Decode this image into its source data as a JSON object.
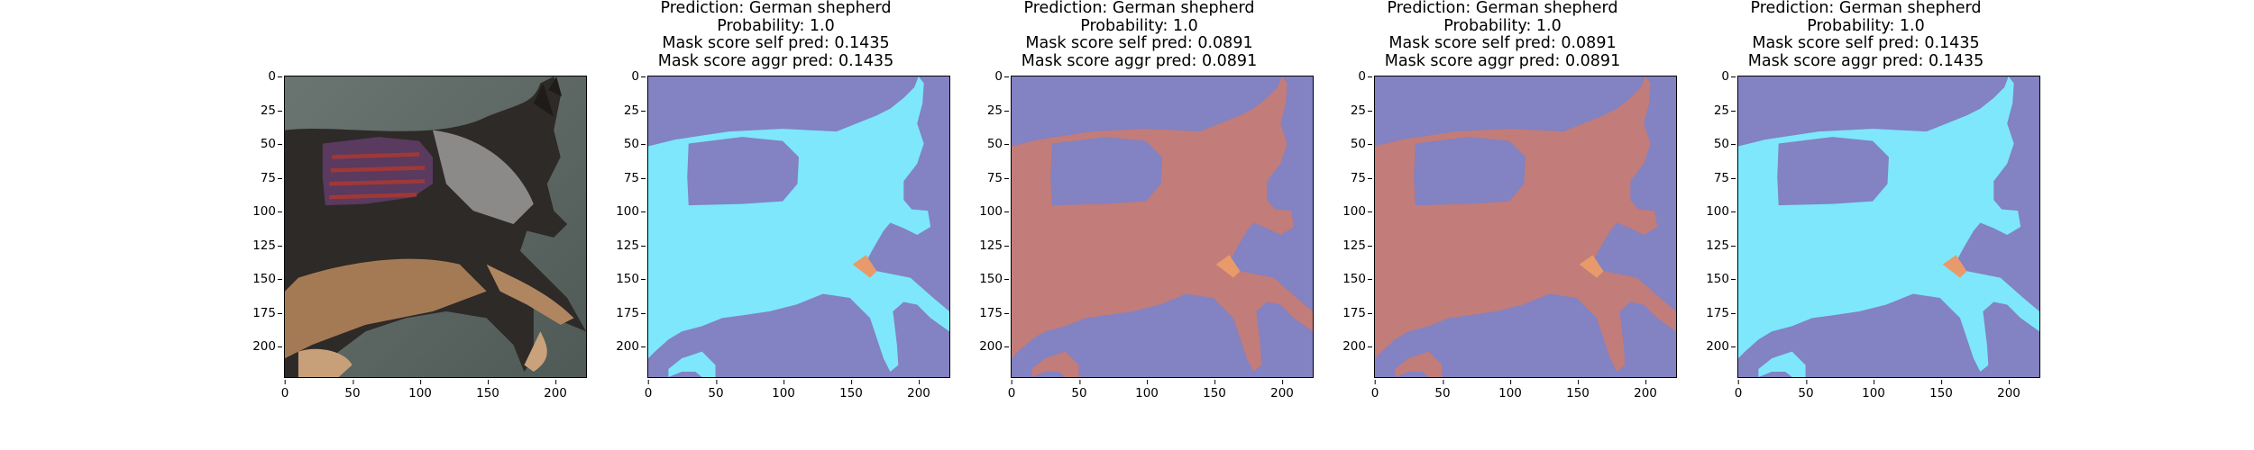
{
  "colors": {
    "background_blue": "#8382c2",
    "cyan_mask": "#7ee7fb",
    "red_mask": "#c27c79",
    "orange_strip": "#e89a6a",
    "photo_floor": "#5c6864"
  },
  "panels": [
    {
      "kind": "photo",
      "title_lines": [
        "",
        "",
        "",
        ""
      ],
      "mask_color": null
    },
    {
      "kind": "mask",
      "title_lines": [
        "Prediction: German shepherd",
        "Probability: 1.0",
        "Mask score self pred: 0.1435",
        "Mask score aggr pred: 0.1435"
      ],
      "mask_color": "cyan"
    },
    {
      "kind": "mask",
      "title_lines": [
        "Prediction: German shepherd",
        "Probability: 1.0",
        "Mask score self pred: 0.0891",
        "Mask score aggr pred: 0.0891"
      ],
      "mask_color": "red"
    },
    {
      "kind": "mask",
      "title_lines": [
        "Prediction: German shepherd",
        "Probability: 1.0",
        "Mask score self pred: 0.0891",
        "Mask score aggr pred: 0.0891"
      ],
      "mask_color": "red"
    },
    {
      "kind": "mask",
      "title_lines": [
        "Prediction: German shepherd",
        "Probability: 1.0",
        "Mask score self pred: 0.1435",
        "Mask score aggr pred: 0.1435"
      ],
      "mask_color": "cyan"
    }
  ],
  "axis": {
    "y_ticks": [
      "0",
      "25",
      "50",
      "75",
      "100",
      "125",
      "150",
      "175",
      "200"
    ],
    "x_ticks": [
      "0",
      "50",
      "100",
      "150",
      "200"
    ],
    "range": [
      0,
      224
    ]
  }
}
